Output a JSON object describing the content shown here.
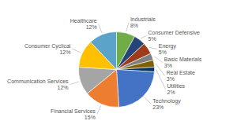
{
  "chart_data": {
    "type": "pie",
    "categories": [
      "Industrials",
      "Consumer Defensive",
      "Energy",
      "Basic Materials",
      "Real Estate",
      "Utilities",
      "Technology",
      "Financial Services",
      "Communication Services",
      "Consumer Cyclical",
      "Healthcare"
    ],
    "values": [
      8,
      5,
      5,
      3,
      3,
      2,
      23,
      15,
      12,
      12,
      12
    ],
    "value_labels": [
      "8%",
      "5%",
      "5%",
      "3%",
      "3%",
      "2%",
      "23%",
      "15%",
      "12%",
      "12%",
      "12%"
    ],
    "colors": [
      "#70AD47",
      "#264478",
      "#9E3B1B",
      "#808080",
      "#806000",
      "#003366",
      "#4472C4",
      "#ED7D31",
      "#A5A5A5",
      "#FFC000",
      "#5BA3C9"
    ],
    "data_labels": true
  }
}
